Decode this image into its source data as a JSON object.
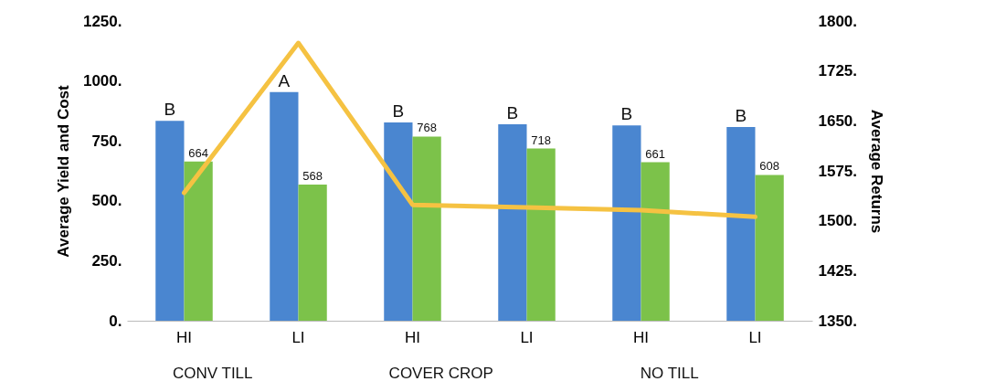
{
  "chart_data": {
    "type": "bar",
    "categories": [
      "HI",
      "LI",
      "HI",
      "LI",
      "HI",
      "LI"
    ],
    "ylabel": "Average Yield and Cost",
    "y2label": "Average Returns",
    "ylim": [
      0,
      1250
    ],
    "yticks": [
      {
        "value": 0,
        "label": "0."
      },
      {
        "value": 250,
        "label": "250."
      },
      {
        "value": 500,
        "label": "500."
      },
      {
        "value": 750,
        "label": "750."
      },
      {
        "value": 1000,
        "label": "1000."
      },
      {
        "value": 1250,
        "label": "1250."
      }
    ],
    "y2lim": [
      1350,
      1800
    ],
    "y2ticks": [
      {
        "value": 1350,
        "label": "1350."
      },
      {
        "value": 1425,
        "label": "1425."
      },
      {
        "value": 1500,
        "label": "1500."
      },
      {
        "value": 1575,
        "label": "1575."
      },
      {
        "value": 1650,
        "label": "1650."
      },
      {
        "value": 1725,
        "label": "1725."
      },
      {
        "value": 1800,
        "label": "1800."
      }
    ],
    "series": [
      {
        "color": "#4a86d0",
        "values": [
          834,
          954,
          827,
          819,
          815,
          808
        ],
        "value_labels": [
          "B",
          "A",
          "B",
          "B",
          "B",
          "B"
        ]
      },
      {
        "color": "#7cc24a",
        "values": [
          664,
          568,
          768,
          718,
          661,
          608
        ],
        "value_labels": [
          "664",
          "568",
          "768",
          "718",
          "661",
          "608"
        ]
      },
      {
        "type": "line",
        "axis": "y2",
        "color": "#f5c242",
        "marker": "none",
        "values": [
          1542,
          1767,
          1524,
          1520,
          1516,
          1506
        ]
      }
    ],
    "annotations": [
      "CONV TILL",
      "COVER CROP",
      "NO TILL"
    ]
  }
}
